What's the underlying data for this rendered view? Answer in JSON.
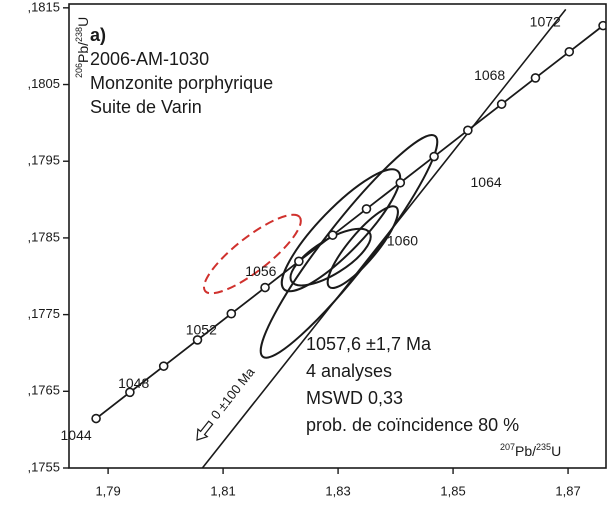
{
  "chart_data": {
    "type": "concordia",
    "panel": "a)",
    "sample_lines": [
      "2006-AM-1030",
      "Monzonite porphyrique",
      "Suite de Varin"
    ],
    "result_lines": [
      "1057,6 ±1,7 Ma",
      "4 analyses",
      "MSWD 0,33",
      "prob. de coïncidence 80 %"
    ],
    "discordia_label": "0 ±100 Ma",
    "y_label_parts": [
      "206",
      "Pb/",
      "238",
      "U"
    ],
    "x_label_parts": [
      "207",
      "Pb/",
      "235",
      "U"
    ],
    "xlim": [
      1.7832,
      1.8766
    ],
    "ylim": [
      0.1755,
      0.18155
    ],
    "xticks": [
      {
        "value": 1.79,
        "label": "1,79"
      },
      {
        "value": 1.81,
        "label": "1,81"
      },
      {
        "value": 1.83,
        "label": "1,83"
      },
      {
        "value": 1.85,
        "label": "1,85"
      },
      {
        "value": 1.87,
        "label": "1,87"
      }
    ],
    "yticks": [
      {
        "value": 0.1755,
        "label": ",1755"
      },
      {
        "value": 0.1765,
        "label": ",1765"
      },
      {
        "value": 0.1775,
        "label": ",1775"
      },
      {
        "value": 0.1785,
        "label": ",1785"
      },
      {
        "value": 0.1795,
        "label": ",1795"
      },
      {
        "value": 0.1805,
        "label": ",1805"
      },
      {
        "value": 0.1815,
        "label": ",1815"
      }
    ],
    "concordia": [
      {
        "x": 1.78791,
        "y": 0.176145,
        "age": 1044
      },
      {
        "x": 1.79379,
        "y": 0.176487
      },
      {
        "x": 1.79967,
        "y": 0.176828,
        "age": 1048
      },
      {
        "x": 1.80555,
        "y": 0.17717
      },
      {
        "x": 1.81143,
        "y": 0.177512,
        "age": 1052
      },
      {
        "x": 1.8173,
        "y": 0.177853
      },
      {
        "x": 1.82318,
        "y": 0.178195,
        "age": 1056
      },
      {
        "x": 1.82906,
        "y": 0.178536
      },
      {
        "x": 1.83494,
        "y": 0.178878,
        "age": 1060
      },
      {
        "x": 1.84082,
        "y": 0.179219
      },
      {
        "x": 1.8467,
        "y": 0.179561,
        "age": 1064
      },
      {
        "x": 1.85257,
        "y": 0.179903
      },
      {
        "x": 1.85845,
        "y": 0.180244,
        "age": 1068
      },
      {
        "x": 1.86433,
        "y": 0.180586
      },
      {
        "x": 1.87021,
        "y": 0.180927,
        "age": 1072
      },
      {
        "x": 1.87609,
        "y": 0.181268
      }
    ],
    "discordia": {
      "x": [
        1.8064,
        1.8696
      ],
      "y": [
        0.1755,
        0.18148
      ]
    },
    "ellipses": [
      {
        "x": 1.8319,
        "y": 0.17839,
        "color": "#1a1a1a"
      },
      {
        "x": 1.8305,
        "y": 0.1786,
        "color": "#1a1a1a"
      },
      {
        "x": 1.8343,
        "y": 0.17838,
        "color": "#1a1a1a"
      },
      {
        "x": 1.8287,
        "y": 0.17825,
        "color": "#1a1a1a"
      },
      {
        "x": 1.8151,
        "y": 0.17829,
        "color": "#d0312d",
        "dashed": true
      }
    ],
    "line_color": "#1a1a1a"
  }
}
